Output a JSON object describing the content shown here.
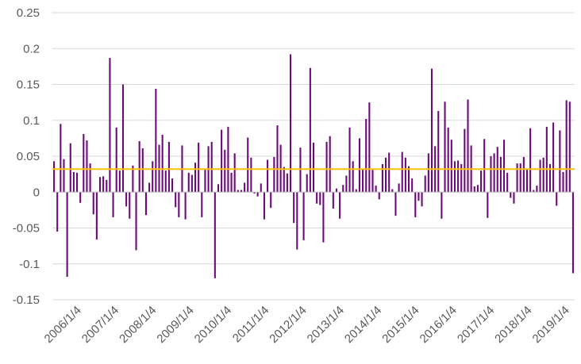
{
  "chart_data": {
    "type": "bar",
    "title": "",
    "xlabel": "",
    "ylabel": "",
    "ylim": [
      -0.15,
      0.25
    ],
    "yticks": [
      -0.15,
      -0.1,
      -0.05,
      0,
      0.05,
      0.1,
      0.15,
      0.2,
      0.25
    ],
    "ytick_labels": [
      "-0.15",
      "-0.1",
      "-0.05",
      "0",
      "0.05",
      "0.1",
      "0.15",
      "0.2",
      "0.25"
    ],
    "xtick_labels": [
      "2006/1/4",
      "2007/1/4",
      "2008/1/4",
      "2009/1/4",
      "2010/1/4",
      "2011/1/4",
      "2012/1/4",
      "2013/1/4",
      "2014/1/4",
      "2015/1/4",
      "2016/1/4",
      "2017/1/4",
      "2018/1/4",
      "2019/1/4"
    ],
    "grid": true,
    "bar_color": "#6a0a78",
    "reference_line": {
      "value": 0.032,
      "color": "#ffc000"
    },
    "values": [
      0.043,
      -0.055,
      0.095,
      0.046,
      -0.118,
      0.068,
      0.028,
      0.027,
      -0.015,
      0.081,
      0.072,
      0.04,
      -0.031,
      -0.066,
      0.021,
      0.022,
      0.017,
      0.187,
      -0.035,
      0.09,
      0.03,
      0.15,
      -0.02,
      -0.037,
      0.037,
      -0.081,
      0.071,
      0.061,
      -0.032,
      0.013,
      0.043,
      0.144,
      0.066,
      0.08,
      0.03,
      0.07,
      0.019,
      -0.021,
      -0.035,
      0.065,
      -0.038,
      0.027,
      0.024,
      0.041,
      0.069,
      -0.035,
      0.032,
      0.064,
      0.07,
      -0.12,
      0.011,
      0.087,
      0.059,
      0.091,
      0.027,
      0.054,
      0.003,
      0.003,
      0.013,
      0.076,
      0.048,
      -0.002,
      -0.006,
      0.012,
      -0.038,
      0.045,
      -0.022,
      0.049,
      0.093,
      0.066,
      0.035,
      0.026,
      0.192,
      -0.043,
      -0.08,
      0.062,
      -0.067,
      0.025,
      0.173,
      0.069,
      -0.016,
      -0.018,
      -0.07,
      0.07,
      0.078,
      -0.023,
      0.005,
      -0.037,
      0.01,
      0.023,
      0.09,
      0.043,
      0.004,
      0.075,
      0.032,
      0.102,
      0.125,
      0.031,
      0.009,
      -0.01,
      0.039,
      0.048,
      0.055,
      0.004,
      -0.033,
      0.012,
      0.056,
      0.048,
      0.036,
      0.019,
      -0.035,
      -0.012,
      -0.02,
      0.023,
      0.054,
      0.172,
      0.064,
      0.113,
      -0.037,
      0.126,
      0.09,
      0.073,
      0.043,
      0.044,
      0.039,
      0.088,
      0.129,
      0.065,
      0.008,
      0.01,
      0.03,
      0.074,
      -0.036,
      0.05,
      0.054,
      0.063,
      0.049,
      0.073,
      0.027,
      -0.008,
      -0.016,
      0.04,
      0.04,
      0.049,
      0.032,
      0.089,
      0.003,
      0.009,
      0.045,
      0.048,
      0.091,
      0.039,
      0.097,
      -0.019,
      0.086,
      0.028,
      0.128,
      0.126,
      -0.113
    ]
  }
}
